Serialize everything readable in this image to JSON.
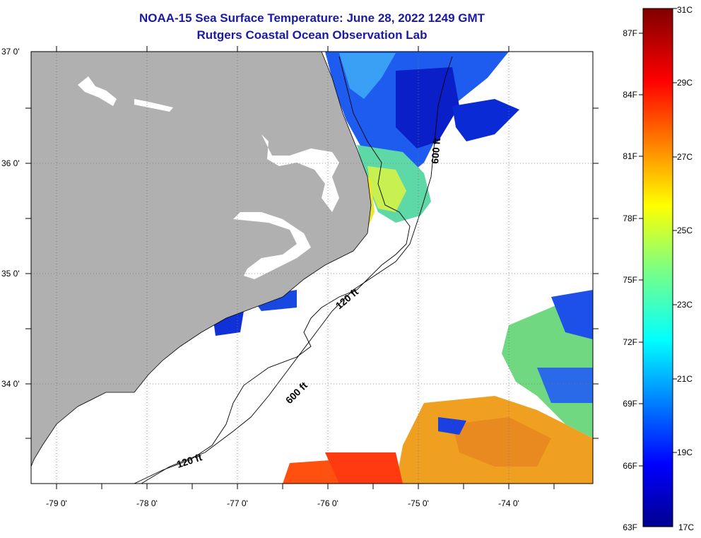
{
  "header": {
    "title_line1": "NOAA-15 Sea Surface Temperature:  June 28, 2022 1249 GMT",
    "title_line2": "Rutgers Coastal Ocean Observation Lab"
  },
  "map": {
    "lat_labels": [
      "37 0'",
      "36 0'",
      "35 0'",
      "34 0'"
    ],
    "lon_labels": [
      "-79 0'",
      "-78 0'",
      "-77 0'",
      "-76 0'",
      "-75 0'",
      "-74 0'"
    ],
    "contour_labels": [
      "120 ft",
      "120 ft",
      "600 ft",
      "600 ft"
    ],
    "colors": {
      "land": "#b0b0b0",
      "ocean_nodata": "#ffffff",
      "coast": "#000000"
    }
  },
  "colorbar": {
    "fahrenheit_labels": [
      "87F",
      "84F",
      "81F",
      "78F",
      "75F",
      "72F",
      "69F",
      "66F",
      "63F"
    ],
    "celsius_labels": [
      "31C",
      "29C",
      "27C",
      "25C",
      "23C",
      "21C",
      "19C",
      "17C"
    ],
    "range_c": [
      17,
      31
    ]
  }
}
